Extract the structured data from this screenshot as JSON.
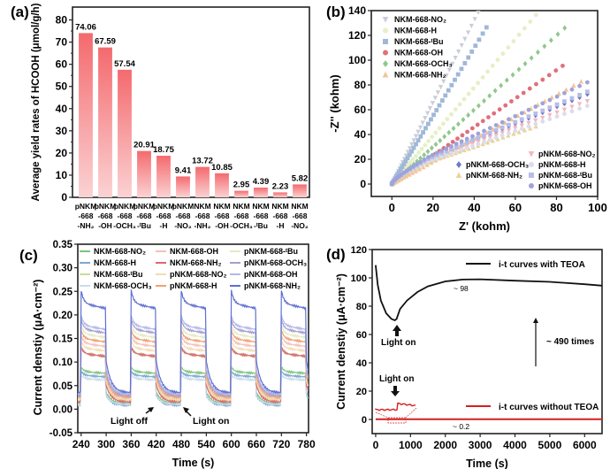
{
  "chart_data": [
    {
      "panel": "(a)",
      "type": "bar",
      "title": "",
      "xlabel": "",
      "ylabel": "Average yield rates of HCOOH (μmol/g/h)",
      "ylim": [
        0,
        85
      ],
      "yticks": [
        0,
        10,
        20,
        30,
        40,
        50,
        60,
        70,
        80
      ],
      "categories": [
        [
          "pNKM",
          "-668",
          "-NH₂"
        ],
        [
          "pNKM",
          "-668",
          "-OH"
        ],
        [
          "pNKM",
          "-668",
          "-OCH₃"
        ],
        [
          "pNKM",
          "-668",
          "-ᵗBu"
        ],
        [
          "pNKM",
          "-668",
          "-H"
        ],
        [
          "pNKM",
          "-668",
          "-NO₂"
        ],
        [
          "NKM",
          "-668",
          "-NH₂"
        ],
        [
          "NKM",
          "-668",
          "-OH"
        ],
        [
          "NKM",
          "-668",
          "-OCH₃"
        ],
        [
          "NKM",
          "-668",
          "-ᵗBu"
        ],
        [
          "NKM",
          "-668",
          "-H"
        ],
        [
          "NKM",
          "-668",
          "-NO₂"
        ]
      ],
      "values": [
        74.06,
        67.59,
        57.54,
        20.91,
        18.75,
        9.41,
        13.72,
        10.85,
        2.95,
        4.39,
        2.23,
        5.82
      ],
      "data_labels": [
        "74.06",
        "67.59",
        "57.54",
        "20.91",
        "18.75",
        "9.41",
        "13.72",
        "10.85",
        "2.95",
        "4.39",
        "2.23",
        "5.82"
      ],
      "bar_color_top": "#f46a6e",
      "bar_color_bottom": "#fbd2d3"
    },
    {
      "panel": "(b)",
      "type": "scatter",
      "xlabel": "Z' (kohm)",
      "ylabel": "-Z'' (kohm)",
      "xlim": [
        -10,
        100
      ],
      "ylim": [
        -10,
        140
      ],
      "xticks": [
        0,
        20,
        40,
        60,
        80,
        100
      ],
      "yticks": [
        0,
        20,
        40,
        60,
        80,
        100,
        120,
        140
      ],
      "legend_top_left": [
        "NKM-668-NO₂",
        "NKM-668-H",
        "NKM-668-ᵗBu",
        "NKM-668-OH",
        "NKM-668-OCH₃",
        "NKM-668-NH₂"
      ],
      "legend_bottom_right": [
        "pNKM-668-OCH₃",
        "pNKM-668-NH₂",
        "pNKM-668-NO₂",
        "pNKM-668-H",
        "pNKM-668-ᵗBu",
        "pNKM-668-OH"
      ],
      "series": [
        {
          "name": "NKM-668-NO₂",
          "marker": "triangle-down",
          "color": "#c9cdd8",
          "slope": 3.3,
          "xmax": 42
        },
        {
          "name": "NKM-668-H",
          "marker": "circle",
          "color": "#e6efc6",
          "slope": 1.95,
          "xmax": 70
        },
        {
          "name": "NKM-668-ᵗBu",
          "marker": "square",
          "color": "#9fb8d8",
          "slope": 2.75,
          "xmax": 46
        },
        {
          "name": "NKM-668-OH",
          "marker": "circle",
          "color": "#e0707a",
          "slope": 1.15,
          "xmax": 83
        },
        {
          "name": "NKM-668-OCH₃",
          "marker": "diamond",
          "color": "#8ec98a",
          "slope": 1.5,
          "xmax": 84
        },
        {
          "name": "NKM-668-NH₂",
          "marker": "triangle-up",
          "color": "#f3c49a",
          "slope": 0.9,
          "xmax": 92
        },
        {
          "name": "pNKM-668-OCH₃",
          "marker": "diamond",
          "color": "#6f78c8",
          "slope": 0.68,
          "xmax": 95
        },
        {
          "name": "pNKM-668-NH₂",
          "marker": "triangle-up",
          "color": "#e8d49a",
          "slope": 0.55,
          "xmax": 70
        },
        {
          "name": "pNKM-668-NO₂",
          "marker": "triangle-down",
          "color": "#f2b8bf",
          "slope": 0.62,
          "xmax": 95
        },
        {
          "name": "pNKM-668-H",
          "marker": "circle",
          "color": "#dcdcec",
          "slope": 0.58,
          "xmax": 95
        },
        {
          "name": "pNKM-668-ᵗBu",
          "marker": "square",
          "color": "#b8bde8",
          "slope": 0.7,
          "xmax": 95
        },
        {
          "name": "pNKM-668-OH",
          "marker": "circle",
          "color": "#9ea4d8",
          "slope": 0.78,
          "xmax": 95
        }
      ]
    },
    {
      "panel": "(c)",
      "type": "line",
      "xlabel": "Time (s)",
      "ylabel": "Current denstiy (μA·cm⁻²)",
      "xlim": [
        232,
        785
      ],
      "ylim": [
        -0.05,
        0.35
      ],
      "xticks": [
        240,
        300,
        360,
        420,
        480,
        540,
        600,
        660,
        720,
        780
      ],
      "yticks": [
        -0.05,
        0.0,
        0.05,
        0.1,
        0.15,
        0.2,
        0.25,
        0.3,
        0.35
      ],
      "light_on_starts": [
        240,
        360,
        480,
        600,
        720
      ],
      "cycle_length_s": 120,
      "annotations": [
        "Light off",
        "Light on"
      ],
      "series": [
        {
          "name": "NKM-668-NO₂",
          "color": "#7cc47c",
          "on": 0.08,
          "off": 0.012
        },
        {
          "name": "NKM-668-H",
          "color": "#7fa8d0",
          "on": 0.072,
          "off": 0.008
        },
        {
          "name": "NKM-668-ᵗBu",
          "color": "#c8dca0",
          "on": 0.118,
          "off": 0.018
        },
        {
          "name": "NKM-668-OCH₃",
          "color": "#c8dcec",
          "on": 0.065,
          "off": 0.01
        },
        {
          "name": "NKM-668-OH",
          "color": "#f4c0bc",
          "on": 0.14,
          "off": 0.022
        },
        {
          "name": "NKM-668-NH₂",
          "color": "#dc6a70",
          "on": 0.118,
          "off": 0.015
        },
        {
          "name": "pNKM-668-NO₂",
          "color": "#f2dcb0",
          "on": 0.13,
          "off": 0.02
        },
        {
          "name": "pNKM-668-H",
          "color": "#f0a070",
          "on": 0.15,
          "off": 0.025
        },
        {
          "name": "pNKM-668-ᵗBu",
          "color": "#e0ecc0",
          "on": 0.16,
          "off": 0.03
        },
        {
          "name": "pNKM-668-OCH₃",
          "color": "#a99ccc",
          "on": 0.17,
          "off": 0.028
        },
        {
          "name": "pNKM-668-OH",
          "color": "#b0b8ec",
          "on": 0.178,
          "off": 0.032
        },
        {
          "name": "pNKM-668-NH₂",
          "color": "#6070d0",
          "on": 0.225,
          "off": 0.035
        }
      ]
    },
    {
      "panel": "(d)",
      "type": "line",
      "xlabel": "Time (s)",
      "ylabel": "Current denstiy (μA·cm⁻²)",
      "xlim": [
        -100,
        6500
      ],
      "ylim": [
        -10,
        120
      ],
      "xticks": [
        0,
        1000,
        2000,
        3000,
        4000,
        5000,
        6000
      ],
      "yticks": [
        0,
        20,
        40,
        60,
        80,
        100,
        120
      ],
      "series": [
        {
          "name": "i-t curves with TEOA",
          "color": "#111111",
          "points": [
            [
              0,
              109
            ],
            [
              60,
              95
            ],
            [
              150,
              84
            ],
            [
              300,
              75
            ],
            [
              450,
              71
            ],
            [
              550,
              70
            ],
            [
              600,
              71
            ],
            [
              700,
              78
            ],
            [
              900,
              84
            ],
            [
              1200,
              90
            ],
            [
              1500,
              94
            ],
            [
              2000,
              97.5
            ],
            [
              2500,
              98.8
            ],
            [
              3000,
              99
            ],
            [
              4000,
              98
            ],
            [
              5000,
              97.2
            ],
            [
              6000,
              95.5
            ],
            [
              6500,
              94.5
            ]
          ]
        },
        {
          "name": "i-t curves without TEOA",
          "color": "#d42020",
          "points": [
            [
              0,
              0.2
            ],
            [
              6500,
              0.2
            ]
          ]
        }
      ],
      "annotations": [
        "Light on",
        "~ 98",
        "~ 490 times",
        "Light on",
        "~ 0.2"
      ]
    }
  ],
  "panels": {
    "a": {
      "tag": "(a)"
    },
    "b": {
      "tag": "(b)"
    },
    "c": {
      "tag": "(c)"
    },
    "d": {
      "tag": "(d)",
      "approx_high": "~ 98",
      "approx_low": "~ 0.2",
      "ratio": "~ 490 times",
      "light_on": "Light on"
    },
    "c_annot": {
      "off": "Light off",
      "on": "Light on"
    }
  }
}
